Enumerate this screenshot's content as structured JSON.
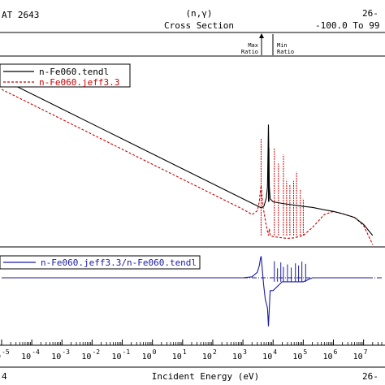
{
  "chart_data": {
    "type": "line",
    "header": {
      "left": "AT 2643",
      "center_top": "(n,γ)",
      "center_bottom": "Cross Section",
      "right_top": "26-",
      "right_bottom": "-100.0 To 99"
    },
    "ratio_marks": {
      "max": [
        "Max",
        "Ratio"
      ],
      "min": [
        "Min",
        "Ratio"
      ]
    },
    "xlabel": "Incident Energy (eV)",
    "corner_left_label": "4",
    "corner_right_label": "26-",
    "x_scale": "log",
    "xlim": [
      1e-05,
      40000000.0
    ],
    "x_tick_labels": [
      "-5",
      "-4",
      "-3",
      "-2",
      "-1",
      "0",
      "1",
      "2",
      "3",
      "4",
      "5",
      "6",
      "7"
    ],
    "x_tick_base": "10",
    "upper_panel": {
      "legend_position": "top-left",
      "series": [
        {
          "name": "n-Fe060.tendl",
          "color": "#000000",
          "style": "solid",
          "x": [
            1e-05,
            0.001,
            0.1,
            10,
            1000,
            3000,
            4000,
            5000,
            6000,
            6500,
            7000,
            7500,
            8000,
            10000,
            20000,
            50000,
            100000,
            200000,
            500000,
            1000000,
            2000000,
            5000000,
            10000000,
            20000000
          ],
          "y": [
            10,
            1.0,
            0.1,
            0.01,
            0.001,
            0.00058,
            0.0005,
            0.00058,
            0.0011,
            0.0025,
            0.3,
            0.0025,
            0.001,
            0.0008,
            0.0007,
            0.00062,
            0.00056,
            0.00052,
            0.00043,
            0.00038,
            0.00032,
            0.00024,
            0.00014,
            6e-05
          ]
        },
        {
          "name": "n-Fe060.jeff3.3",
          "color": "#cc0000",
          "style": "dashed",
          "x": [
            1e-05,
            0.001,
            0.1,
            10,
            1000,
            2000,
            3000,
            3500,
            3700,
            4000,
            4300,
            4700,
            6000,
            7000,
            7500,
            8000,
            10000,
            20000,
            30000,
            50000,
            100000,
            200000,
            500000,
            1000000,
            2000000,
            5000000,
            10000000,
            20000000
          ],
          "y": [
            4.5,
            0.45,
            0.045,
            0.0045,
            0.00045,
            0.0003,
            0.0004,
            0.0008,
            0.0015,
            0.0028,
            0.0012,
            0.0005,
            0.00012,
            6e-05,
            0.0001,
            6e-05,
            5.5e-05,
            5e-05,
            4.8e-05,
            5e-05,
            6e-05,
            0.00011,
            0.0003,
            0.00038,
            0.00032,
            0.00024,
            0.00013,
            3e-05
          ]
        }
      ],
      "resonances_tendl": [
        {
          "x": 7000,
          "y": 0.3
        },
        {
          "x": 7300,
          "y": 0.05
        }
      ],
      "resonances_jeff": [
        {
          "x": 4000,
          "y": 0.1
        },
        {
          "x": 11000,
          "y": 0.05
        },
        {
          "x": 15000,
          "y": 0.015
        },
        {
          "x": 22000,
          "y": 0.03
        },
        {
          "x": 28000,
          "y": 0.004
        },
        {
          "x": 36000,
          "y": 0.003
        },
        {
          "x": 48000,
          "y": 0.004
        },
        {
          "x": 60000,
          "y": 0.008
        },
        {
          "x": 80000,
          "y": 0.002
        },
        {
          "x": 100000,
          "y": 0.001
        }
      ]
    },
    "lower_panel": {
      "legend_position": "top-left",
      "series": [
        {
          "name": "n-Fe060.jeff3.3/n-Fe060.tendl",
          "color": "#1a1aa6",
          "style": "solid",
          "x": [
            1e-05,
            1000,
            2000,
            3000,
            3500,
            3800,
            4000,
            4300,
            4800,
            5500,
            6500,
            7000,
            7500,
            8000,
            10000,
            20000,
            50000,
            100000,
            200000,
            500000,
            1000000,
            2000000,
            20000000
          ],
          "y": [
            0.45,
            0.45,
            0.5,
            0.8,
            1.6,
            3.2,
            4.2,
            1.5,
            0.25,
            0.05,
            0.02,
            0.003,
            0.02,
            0.12,
            0.12,
            0.3,
            0.3,
            0.3,
            0.45,
            0.45,
            0.45,
            0.45,
            0.45
          ]
        }
      ],
      "spikes": [
        {
          "x": 11000,
          "y": 2.5
        },
        {
          "x": 14000,
          "y": 1.2
        },
        {
          "x": 18000,
          "y": 2.2
        },
        {
          "x": 22000,
          "y": 1.4
        },
        {
          "x": 30000,
          "y": 1.8
        },
        {
          "x": 40000,
          "y": 1.3
        },
        {
          "x": 55000,
          "y": 2.0
        },
        {
          "x": 70000,
          "y": 1.6
        },
        {
          "x": 90000,
          "y": 2.4
        },
        {
          "x": 120000,
          "y": 1.9
        }
      ],
      "reference_line": {
        "y": 0.45,
        "color": "#1a1aa6",
        "style": "dash-dot"
      }
    }
  }
}
